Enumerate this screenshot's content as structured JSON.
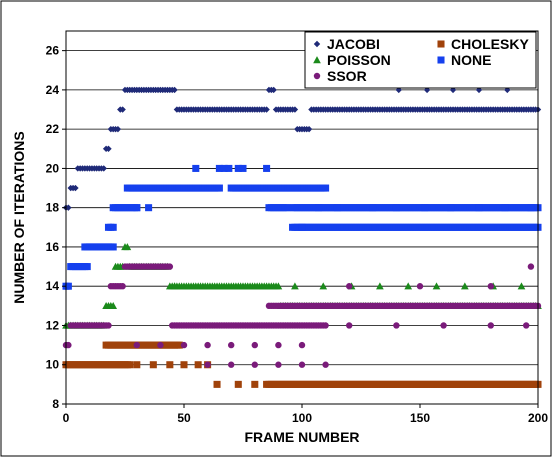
{
  "chart_data": {
    "type": "scatter",
    "xlabel": "FRAME NUMBER",
    "ylabel": "NUMBER OF ITERATIONS",
    "xlim": [
      0,
      200
    ],
    "ylim": [
      8,
      27
    ],
    "x_ticks": [
      0,
      50,
      100,
      150,
      200
    ],
    "y_ticks": [
      8,
      10,
      12,
      14,
      16,
      18,
      20,
      22,
      24,
      26
    ],
    "grid": "horizontal",
    "legend": "top-right",
    "series": [
      {
        "name": "JACOBI",
        "marker": "diamond",
        "color": "#1f2a78",
        "segments": [
          [
            0,
            1,
            18
          ],
          [
            2,
            4,
            19
          ],
          [
            5,
            16,
            20
          ],
          [
            17,
            18,
            21
          ],
          [
            19,
            22,
            22
          ],
          [
            23,
            24,
            23
          ],
          [
            25,
            46,
            24
          ],
          [
            47,
            85,
            23
          ],
          [
            86,
            88,
            24
          ],
          [
            89,
            97,
            23
          ],
          [
            98,
            103,
            22
          ],
          [
            104,
            200,
            23
          ]
        ],
        "sparse_points": [
          [
            141,
            24
          ],
          [
            153,
            24
          ],
          [
            164,
            24
          ],
          [
            175,
            24
          ],
          [
            187,
            24
          ]
        ]
      },
      {
        "name": "CHOLESKY",
        "marker": "square",
        "color": "#a0420a",
        "segments": [
          [
            0,
            27,
            10
          ],
          [
            17,
            48,
            11
          ],
          [
            85,
            200,
            9
          ]
        ],
        "sparse_points": [
          [
            30,
            10
          ],
          [
            37,
            10
          ],
          [
            44,
            10
          ],
          [
            50,
            10
          ],
          [
            56,
            10
          ],
          [
            60,
            10
          ],
          [
            64,
            9
          ],
          [
            73,
            9
          ],
          [
            80,
            9
          ]
        ]
      },
      {
        "name": "POISSON",
        "marker": "triangle",
        "color": "#1b8a1b",
        "segments": [
          [
            0,
            1,
            12
          ],
          [
            2,
            16,
            12
          ],
          [
            17,
            20,
            13
          ],
          [
            21,
            24,
            15
          ],
          [
            25,
            26,
            16
          ],
          [
            27,
            43,
            15
          ],
          [
            44,
            90,
            14
          ],
          [
            91,
            200,
            13
          ]
        ],
        "sparse_points": [
          [
            46,
            14
          ],
          [
            97,
            14
          ],
          [
            109,
            14
          ],
          [
            121,
            14
          ],
          [
            133,
            14
          ],
          [
            145,
            14
          ],
          [
            157,
            14
          ],
          [
            169,
            14
          ],
          [
            181,
            14
          ],
          [
            193,
            14
          ]
        ]
      },
      {
        "name": "SSOR",
        "marker": "circle",
        "color": "#7a1b7a",
        "segments": [
          [
            0,
            1,
            11
          ],
          [
            2,
            18,
            12
          ],
          [
            19,
            24,
            14
          ],
          [
            25,
            44,
            15
          ],
          [
            45,
            110,
            12
          ],
          [
            86,
            200,
            13
          ]
        ],
        "sparse_points": [
          [
            30,
            11
          ],
          [
            40,
            11
          ],
          [
            50,
            11
          ],
          [
            60,
            11
          ],
          [
            70,
            11
          ],
          [
            80,
            11
          ],
          [
            90,
            11
          ],
          [
            100,
            11
          ],
          [
            60,
            10
          ],
          [
            70,
            10
          ],
          [
            80,
            10
          ],
          [
            90,
            10
          ],
          [
            100,
            10
          ],
          [
            110,
            10
          ],
          [
            120,
            12
          ],
          [
            140,
            12
          ],
          [
            160,
            12
          ],
          [
            180,
            12
          ],
          [
            195,
            12
          ],
          [
            197,
            15
          ],
          [
            120,
            14
          ],
          [
            150,
            14
          ],
          [
            180,
            14
          ]
        ]
      },
      {
        "name": "NONE",
        "marker": "square",
        "color": "#1540ee",
        "segments": [
          [
            0,
            1,
            14
          ],
          [
            2,
            9,
            15
          ],
          [
            8,
            20,
            16
          ],
          [
            18,
            20,
            17
          ],
          [
            20,
            30,
            18
          ],
          [
            26,
            65,
            19
          ],
          [
            70,
            110,
            19
          ],
          [
            86,
            94,
            18
          ],
          [
            96,
            200,
            18
          ],
          [
            96,
            200,
            17
          ]
        ],
        "sparse_points": [
          [
            55,
            20
          ],
          [
            65,
            20
          ],
          [
            67,
            20
          ],
          [
            69,
            20
          ],
          [
            73,
            20
          ],
          [
            75,
            20
          ],
          [
            85,
            20
          ],
          [
            30,
            18
          ],
          [
            35,
            18
          ],
          [
            100,
            17
          ],
          [
            107,
            18
          ],
          [
            115,
            18
          ],
          [
            130,
            18
          ],
          [
            140,
            18
          ],
          [
            152,
            18
          ],
          [
            163,
            18
          ],
          [
            175,
            18
          ],
          [
            186,
            18
          ],
          [
            197,
            18
          ]
        ]
      }
    ]
  }
}
